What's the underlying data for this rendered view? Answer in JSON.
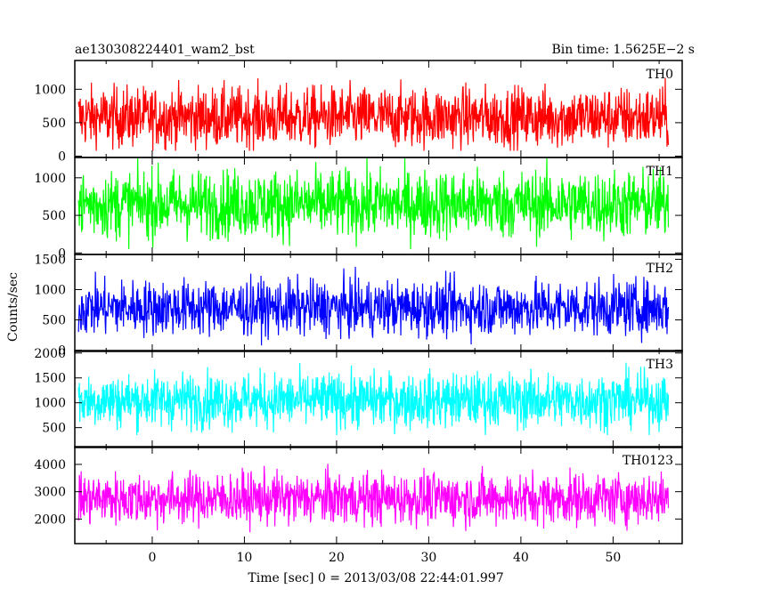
{
  "chart_data": {
    "type": "line",
    "title": "ae130308224401_wam2_bst",
    "subtitle": "Bin time: 1.5625E−2 s",
    "xlabel": "Time [sec] 0 = 2013/03/08 22:44:01.997",
    "ylabel": "Counts/sec",
    "xlim": [
      -8.4,
      57.5
    ],
    "x_ticks": [
      0,
      10,
      20,
      30,
      40,
      50
    ],
    "x_tick_labels": [
      "0",
      "10",
      "20",
      "30",
      "40",
      "50"
    ],
    "data_range": [
      -8,
      56
    ],
    "bin_time_s": 0.015625,
    "grid": false,
    "legend": "none",
    "panels": [
      {
        "name": "TH0",
        "color": "#ff0000",
        "ylim": [
          -20,
          1430
        ],
        "ticks": [
          0,
          500,
          1000
        ],
        "tick_labels": [
          "0",
          "500",
          "1000"
        ],
        "mean": 580,
        "spread": 230,
        "floor": 80,
        "cap": 1420
      },
      {
        "name": "TH1",
        "color": "#00ff00",
        "ylim": [
          -20,
          1270
        ],
        "ticks": [
          0,
          500,
          1000
        ],
        "tick_labels": [
          "0",
          "500",
          "1000"
        ],
        "mean": 650,
        "spread": 230,
        "floor": 50,
        "cap": 1260
      },
      {
        "name": "TH2",
        "color": "#0000ff",
        "ylim": [
          -20,
          1580
        ],
        "ticks": [
          0,
          500,
          1000,
          1500
        ],
        "tick_labels": [
          "0",
          "500",
          "1000",
          "1500"
        ],
        "mean": 700,
        "spread": 230,
        "floor": 80,
        "cap": 1570
      },
      {
        "name": "TH3",
        "color": "#00ffff",
        "ylim": [
          100,
          2050
        ],
        "ticks": [
          500,
          1000,
          1500,
          2000
        ],
        "tick_labels": [
          "500",
          "1000",
          "1500",
          "2000"
        ],
        "mean": 1050,
        "spread": 280,
        "floor": 350,
        "cap": 2040
      },
      {
        "name": "TH0123",
        "color": "#ff00ff",
        "ylim": [
          1100,
          4650
        ],
        "ticks": [
          2000,
          3000,
          4000
        ],
        "tick_labels": [
          "2000",
          "3000",
          "4000"
        ],
        "mean": 2750,
        "spread": 480,
        "floor": 1300,
        "cap": 4640
      }
    ]
  }
}
